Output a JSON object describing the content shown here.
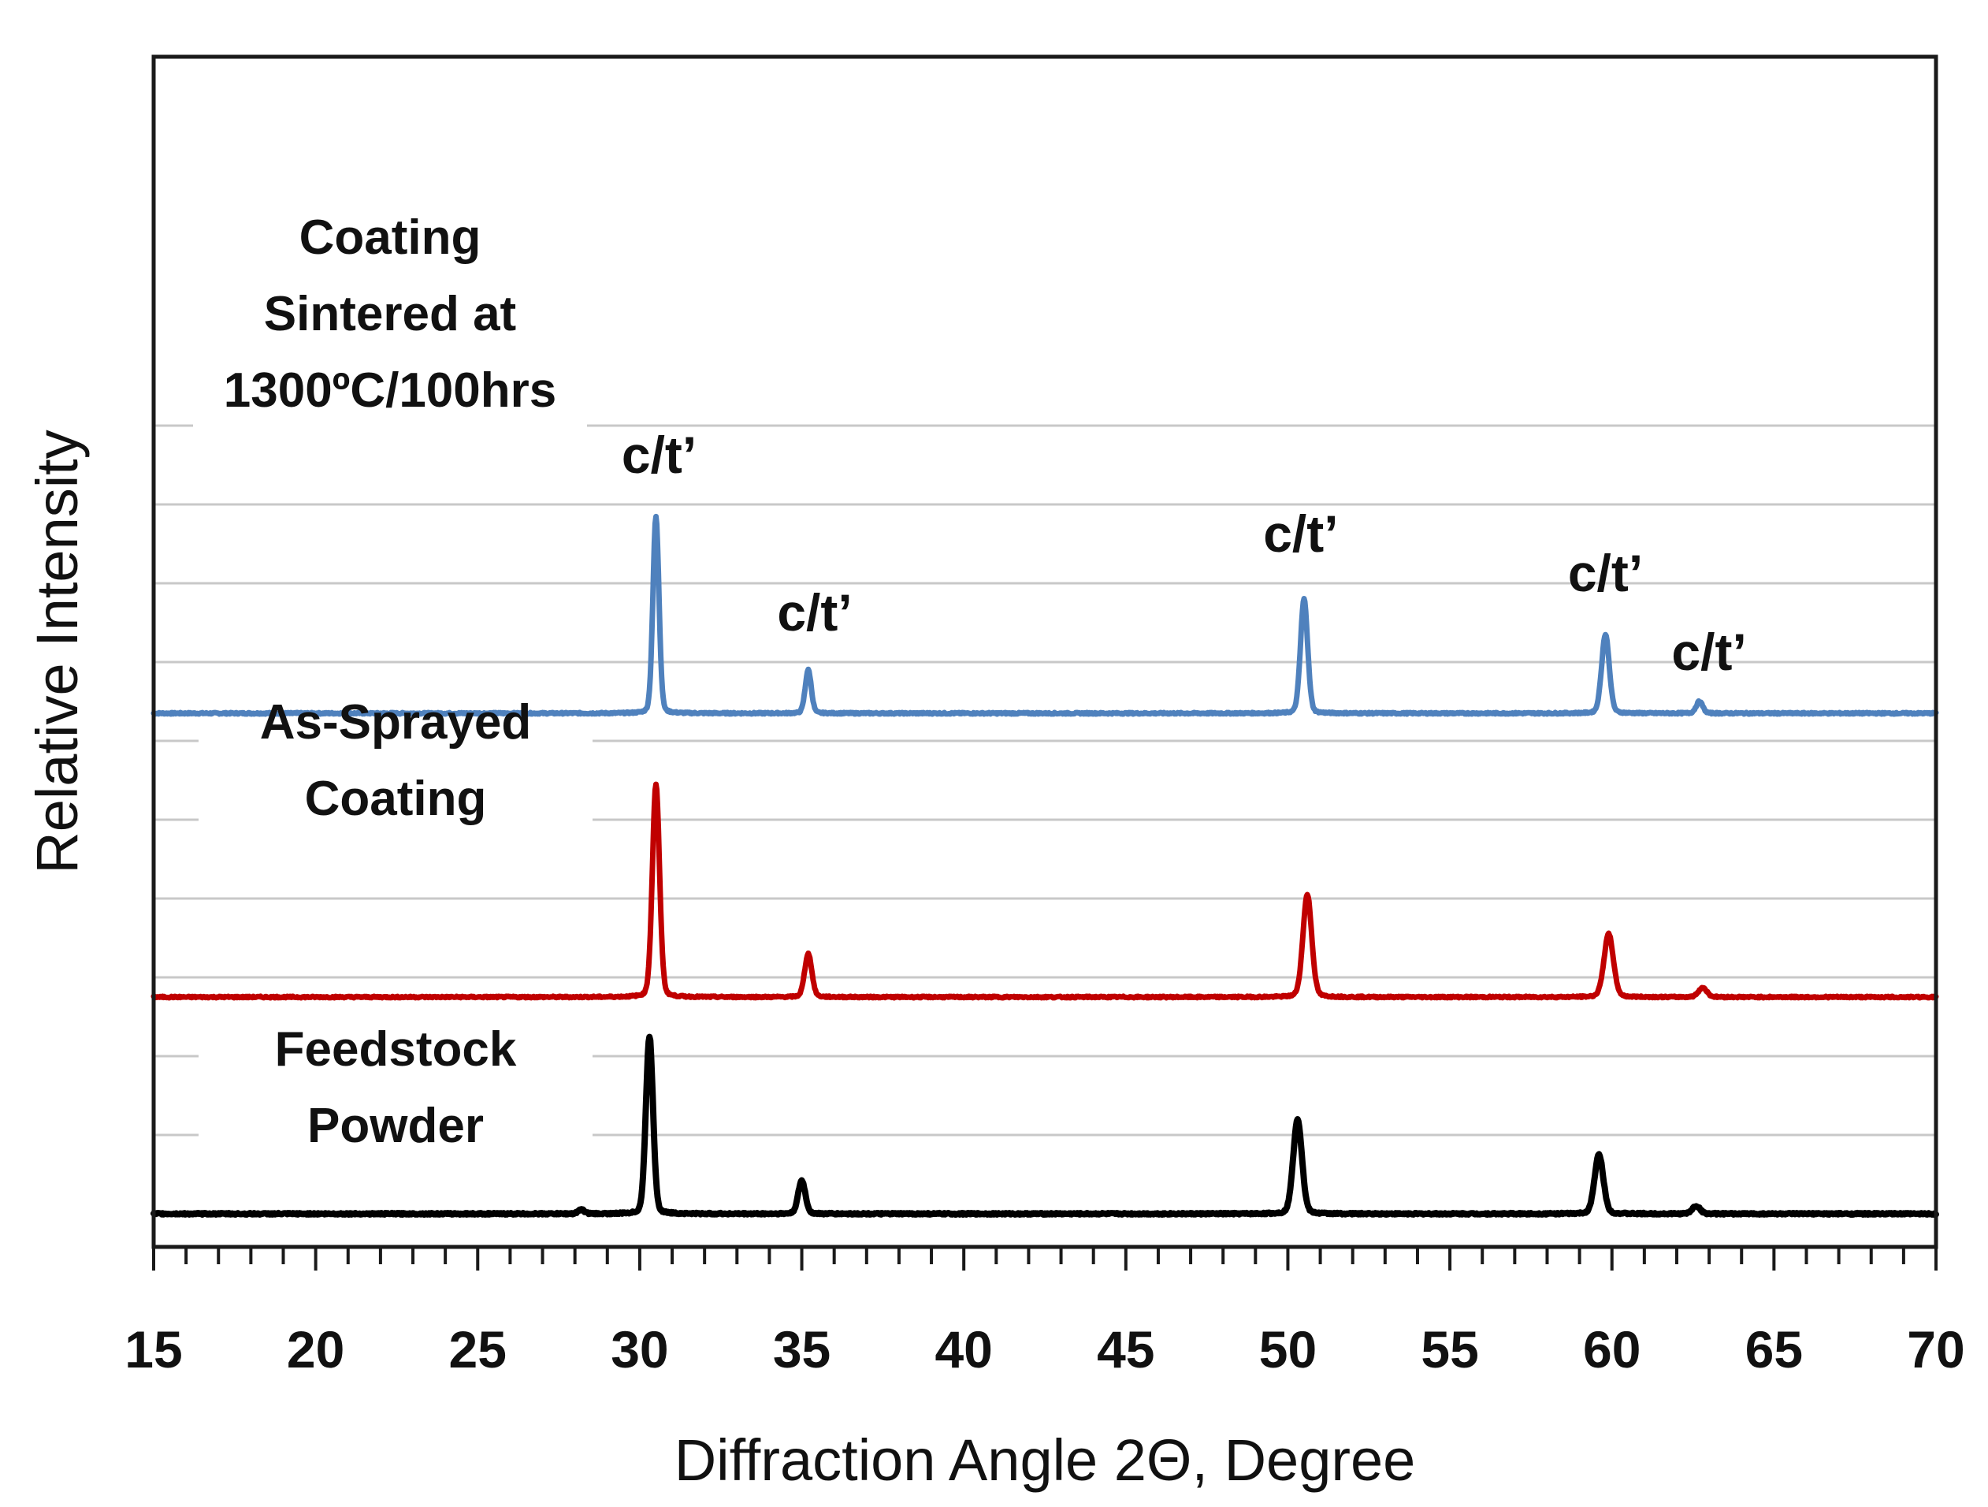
{
  "chart_data": {
    "type": "line",
    "title": "",
    "xlabel": "Diffraction Angle 2Θ, Degree",
    "ylabel": "Relative Intensity",
    "xlim": [
      15,
      70
    ],
    "xticks": [
      15,
      20,
      25,
      30,
      35,
      40,
      45,
      50,
      55,
      60,
      65,
      70
    ],
    "xtick_labels": [
      "15",
      "20",
      "25",
      "30",
      "35",
      "40",
      "45",
      "50",
      "55",
      "60",
      "65",
      "70"
    ],
    "ylim": [
      0,
      10
    ],
    "grid": true,
    "legend": "none",
    "series": [
      {
        "name": "Coating\nSintered at\n1300ºC/100hrs",
        "name_lines": [
          "Coating",
          "Sintered at",
          "1300ºC/100hrs"
        ],
        "color": "#4f81bd",
        "baseline": 6.35,
        "peaks": [
          {
            "x": 30.5,
            "height": 2.5,
            "width": 0.11
          },
          {
            "x": 35.2,
            "height": 0.55,
            "width": 0.11
          },
          {
            "x": 50.5,
            "height": 1.45,
            "width": 0.13
          },
          {
            "x": 59.8,
            "height": 1.0,
            "width": 0.14
          },
          {
            "x": 62.7,
            "height": 0.15,
            "width": 0.12
          }
        ]
      },
      {
        "name": "As-Sprayed\nCoating",
        "name_lines": [
          "As-Sprayed",
          "Coating"
        ],
        "color": "#c00000",
        "baseline": 2.75,
        "peaks": [
          {
            "x": 30.5,
            "height": 2.7,
            "width": 0.13
          },
          {
            "x": 35.2,
            "height": 0.55,
            "width": 0.13
          },
          {
            "x": 50.6,
            "height": 1.3,
            "width": 0.16
          },
          {
            "x": 59.9,
            "height": 0.8,
            "width": 0.17
          },
          {
            "x": 62.8,
            "height": 0.12,
            "width": 0.15
          }
        ]
      },
      {
        "name": "Feedstock\nPowder",
        "name_lines": [
          "Feedstock",
          "Powder"
        ],
        "color": "#000000",
        "baseline": 0,
        "peaks": [
          {
            "x": 28.2,
            "height": 0.05,
            "width": 0.12
          },
          {
            "x": 30.3,
            "height": 2.25,
            "width": 0.13
          },
          {
            "x": 35.0,
            "height": 0.42,
            "width": 0.13
          },
          {
            "x": 50.3,
            "height": 1.2,
            "width": 0.16
          },
          {
            "x": 59.6,
            "height": 0.75,
            "width": 0.16
          },
          {
            "x": 62.6,
            "height": 0.1,
            "width": 0.14
          }
        ]
      }
    ],
    "annotations": [
      {
        "text": "c/t’",
        "x": 30.6,
        "y": 9.4
      },
      {
        "text": "c/t’",
        "x": 35.4,
        "y": 7.4
      },
      {
        "text": "c/t’",
        "x": 50.4,
        "y": 8.4
      },
      {
        "text": "c/t’",
        "x": 59.8,
        "y": 7.9
      },
      {
        "text": "c/t’",
        "x": 63.0,
        "y": 6.9
      }
    ]
  }
}
